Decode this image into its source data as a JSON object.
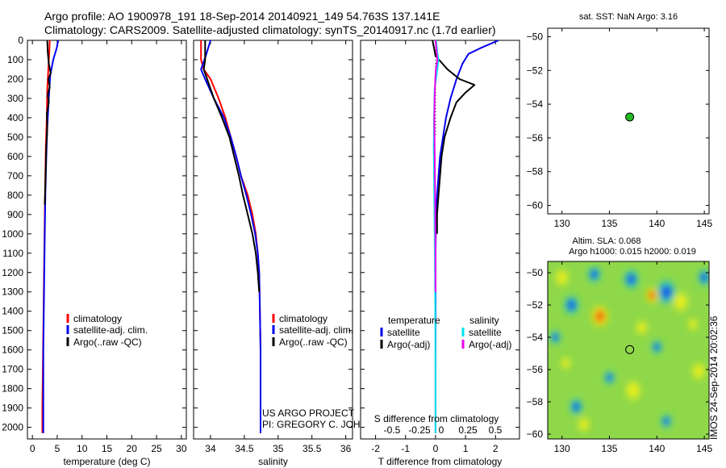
{
  "header": {
    "line1": "Argo profile: AO 1900978_191 18-Sep-2014 20140921_149 54.763S 137.141E",
    "line2": "Climatology: CARS2009. Satellite-adjusted climatology: synTS_20140917.nc (1.7d earlier)"
  },
  "colors": {
    "climatology": "#ff0000",
    "satellite": "#0000ee",
    "argo": "#000000",
    "salinity_satellite": "#00e5ee",
    "salinity_argo": "#ee00ee",
    "marker": "#22bb22"
  },
  "chart_data": [
    {
      "id": "temperature",
      "type": "line",
      "xlabel": "temperature (deg C)",
      "ylabel": "",
      "xlim": [
        -1,
        31
      ],
      "ylim": [
        2060,
        0
      ],
      "xticks": [
        0,
        5,
        10,
        15,
        20,
        25,
        30
      ],
      "yticks": [
        0,
        100,
        200,
        300,
        400,
        500,
        600,
        700,
        800,
        900,
        1000,
        1100,
        1200,
        1300,
        1400,
        1500,
        1600,
        1700,
        1800,
        1900,
        2000
      ],
      "legend": [
        "climatology",
        "satellite-adj. clim.",
        "Argo(..raw -QC)"
      ],
      "series": [
        {
          "name": "climatology",
          "color_key": "climatology",
          "x": [
            3.5,
            3.4,
            3.2,
            3.0,
            2.9,
            2.7,
            2.6,
            2.5,
            2.4,
            2.3,
            2.2,
            2.1,
            2.0,
            2.0
          ],
          "y": [
            0,
            60,
            150,
            250,
            400,
            550,
            700,
            900,
            1100,
            1300,
            1500,
            1700,
            1900,
            2030
          ]
        },
        {
          "name": "satellite-adj. clim.",
          "color_key": "satellite",
          "x": [
            5.2,
            4.9,
            4.2,
            3.6,
            3.3,
            3.0,
            2.8,
            2.6,
            2.5,
            2.4,
            2.3,
            2.2,
            2.2,
            2.2
          ],
          "y": [
            0,
            40,
            100,
            180,
            300,
            450,
            600,
            800,
            1000,
            1200,
            1400,
            1600,
            1800,
            2030
          ]
        },
        {
          "name": "Argo(..raw -QC)",
          "color_key": "argo",
          "x": [
            3.0,
            3.1,
            3.3,
            3.7,
            3.2,
            3.5,
            3.1,
            3.3,
            2.9,
            3.0,
            2.8,
            2.7,
            2.6,
            2.5
          ],
          "y": [
            0,
            60,
            120,
            170,
            200,
            240,
            280,
            320,
            380,
            450,
            550,
            650,
            750,
            850
          ]
        }
      ]
    },
    {
      "id": "salinity",
      "type": "line",
      "xlabel": "salinity",
      "ylabel": "",
      "xlim": [
        33.75,
        36.1
      ],
      "ylim": [
        2060,
        0
      ],
      "xticks": [
        34,
        34.5,
        35,
        35.5,
        36
      ],
      "xtick_labels": [
        "34",
        "34.5",
        "35",
        "35.5",
        "36"
      ],
      "legend": [
        "climatology",
        "satellite-adj. clim.",
        "Argo(..raw -QC)"
      ],
      "annotation": [
        "US ARGO PROJECT",
        "PI: GREGORY C. JOHNSON"
      ],
      "series": [
        {
          "name": "climatology",
          "color_key": "climatology",
          "x": [
            33.86,
            33.86,
            33.9,
            34.0,
            34.12,
            34.22,
            34.3,
            34.38,
            34.45,
            34.55,
            34.62,
            34.67,
            34.7,
            34.72,
            34.73,
            34.74,
            34.74,
            34.74
          ],
          "y": [
            0,
            100,
            150,
            200,
            300,
            400,
            500,
            600,
            700,
            800,
            900,
            1000,
            1100,
            1200,
            1400,
            1600,
            1800,
            2030
          ]
        },
        {
          "name": "satellite-adj. clim.",
          "color_key": "satellite",
          "x": [
            34.0,
            33.93,
            33.86,
            33.92,
            34.05,
            34.2,
            34.3,
            34.38,
            34.45,
            34.53,
            34.6,
            34.66,
            34.7,
            34.72,
            34.73,
            34.74,
            34.74,
            34.74
          ],
          "y": [
            0,
            80,
            150,
            200,
            300,
            400,
            500,
            600,
            700,
            800,
            900,
            1000,
            1100,
            1200,
            1400,
            1600,
            1800,
            2030
          ]
        },
        {
          "name": "Argo(..raw -QC)",
          "color_key": "argo",
          "x": [
            33.92,
            33.92,
            33.9,
            33.95,
            34.05,
            34.17,
            34.28,
            34.35,
            34.42,
            34.48,
            34.55,
            34.62,
            34.67,
            34.7,
            34.72
          ],
          "y": [
            0,
            100,
            150,
            200,
            300,
            400,
            500,
            600,
            700,
            800,
            900,
            1000,
            1100,
            1200,
            1300
          ]
        }
      ]
    },
    {
      "id": "difference",
      "type": "line",
      "xlabel": "T difference from climatology",
      "top_xlabel": "S difference from climatology",
      "ylabel": "",
      "xlim": [
        -2.5,
        2.8
      ],
      "ylim": [
        2060,
        0
      ],
      "xticks": [
        -2,
        -1,
        0,
        1,
        2
      ],
      "top_xticks": [
        -0.5,
        -0.25,
        0,
        0.25,
        0.5
      ],
      "top_xtick_labels": [
        "-0.5",
        "-0.25",
        "0",
        "0.25",
        "0.5"
      ],
      "legend_headers": [
        "temperature",
        "salinity"
      ],
      "legend": [
        "satellite",
        "Argo(-adj)",
        "satellite",
        "Argo(-adj)"
      ],
      "series": [
        {
          "name": "satellite",
          "group": "temperature",
          "color_key": "satellite",
          "x": [
            2.1,
            1.5,
            1.1,
            0.9,
            0.7,
            0.5,
            0.35,
            0.25,
            0.15,
            0.1,
            0.05,
            0.02,
            0.0,
            0.0,
            0.0,
            0.0
          ],
          "y": [
            0,
            40,
            70,
            120,
            200,
            300,
            400,
            500,
            600,
            700,
            800,
            900,
            1100,
            1400,
            1700,
            2030
          ]
        },
        {
          "name": "Argo(-adj)",
          "group": "temperature",
          "color_key": "argo",
          "x": [
            -0.1,
            0.0,
            0.4,
            0.8,
            1.3,
            1.0,
            0.7,
            0.5,
            0.3,
            0.2,
            0.15,
            0.1,
            0.05,
            0.05
          ],
          "y": [
            0,
            80,
            150,
            200,
            230,
            270,
            320,
            400,
            500,
            600,
            700,
            800,
            900,
            1000
          ]
        },
        {
          "name": "satellite",
          "group": "salinity",
          "color_key": "salinity_satellite",
          "x": [
            0.02,
            0.05,
            0.1,
            0.06,
            -0.03,
            -0.05,
            -0.06,
            -0.05,
            -0.04,
            -0.03,
            -0.02,
            -0.01,
            0.0,
            0.0
          ],
          "y": [
            0,
            50,
            100,
            150,
            250,
            400,
            550,
            700,
            850,
            1000,
            1200,
            1400,
            1700,
            2030
          ]
        },
        {
          "name": "Argo(-adj)",
          "group": "salinity",
          "color_key": "salinity_argo",
          "x": [
            0.0,
            0.03,
            0.06,
            0.01,
            -0.01,
            -0.03,
            -0.04,
            -0.03,
            -0.02,
            -0.01,
            0.0,
            0.0
          ],
          "y": [
            0,
            50,
            100,
            150,
            200,
            300,
            400,
            550,
            700,
            900,
            1100,
            1300
          ]
        }
      ]
    },
    {
      "id": "sst-map",
      "type": "scatter",
      "title": "sat. SST: NaN Argo: 3.16",
      "xlabel": "",
      "ylabel": "",
      "xlim": [
        128.5,
        145.5
      ],
      "ylim": [
        -60.5,
        -49.5
      ],
      "xticks": [
        130,
        135,
        140,
        145
      ],
      "yticks": [
        -50,
        -52,
        -54,
        -56,
        -58,
        -60
      ],
      "points": [
        {
          "x": 137.14,
          "y": -54.76
        }
      ]
    },
    {
      "id": "sla-map",
      "type": "heatmap",
      "title_line1": "Altim. SLA: 0.068",
      "title_line2": "Argo h1000: 0.015 h2000: 0.019",
      "xlabel": "",
      "ylabel": "",
      "xlim": [
        128.5,
        145.5
      ],
      "ylim": [
        -60.3,
        -49.3
      ],
      "xticks": [
        130,
        135,
        140,
        145
      ],
      "yticks": [
        -50,
        -52,
        -54,
        -56,
        -58,
        -60
      ],
      "points": [
        {
          "x": 137.14,
          "y": -54.76
        }
      ],
      "blobs": [
        {
          "lon": 141.0,
          "lat": -51.2,
          "kind": "blue",
          "r": 0.9
        },
        {
          "lon": 137.3,
          "lat": -50.4,
          "kind": "blue",
          "r": 0.7
        },
        {
          "lon": 133.4,
          "lat": -50.1,
          "kind": "blue",
          "r": 0.6
        },
        {
          "lon": 145.0,
          "lat": -50.3,
          "kind": "blue",
          "r": 0.6
        },
        {
          "lon": 131.0,
          "lat": -52.0,
          "kind": "blue",
          "r": 0.7
        },
        {
          "lon": 140.0,
          "lat": -54.6,
          "kind": "blue",
          "r": 0.5
        },
        {
          "lon": 129.3,
          "lat": -54.0,
          "kind": "blue",
          "r": 0.5
        },
        {
          "lon": 131.5,
          "lat": -58.3,
          "kind": "blue",
          "r": 0.6
        },
        {
          "lon": 141.0,
          "lat": -59.2,
          "kind": "blue",
          "r": 0.5
        },
        {
          "lon": 135.0,
          "lat": -56.5,
          "kind": "blue",
          "r": 0.5
        },
        {
          "lon": 134.0,
          "lat": -52.7,
          "kind": "red",
          "r": 0.8
        },
        {
          "lon": 139.5,
          "lat": -51.4,
          "kind": "red",
          "r": 0.6
        },
        {
          "lon": 142.5,
          "lat": -51.8,
          "kind": "yellow",
          "r": 0.8
        },
        {
          "lon": 130.0,
          "lat": -50.3,
          "kind": "yellow",
          "r": 0.7
        },
        {
          "lon": 138.4,
          "lat": -53.4,
          "kind": "yellow",
          "r": 0.6
        },
        {
          "lon": 137.5,
          "lat": -57.3,
          "kind": "yellow",
          "r": 0.8
        },
        {
          "lon": 132.3,
          "lat": -59.4,
          "kind": "yellow",
          "r": 0.6
        },
        {
          "lon": 144.4,
          "lat": -56.1,
          "kind": "yellow",
          "r": 0.7
        },
        {
          "lon": 143.8,
          "lat": -53.2,
          "kind": "yellow",
          "r": 0.5
        },
        {
          "lon": 130.4,
          "lat": -55.6,
          "kind": "yellow",
          "r": 0.5
        }
      ]
    }
  ],
  "timestamp": "IMOS 24-Sep-2014 20:02:36"
}
